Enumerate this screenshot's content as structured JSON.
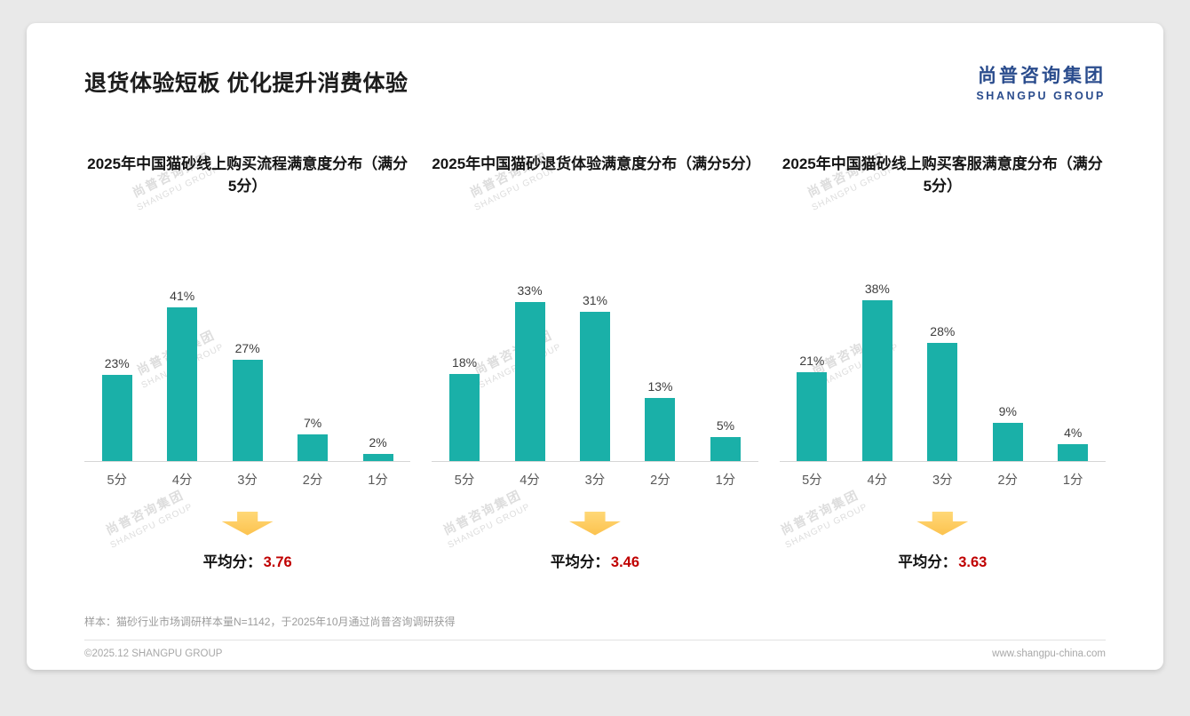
{
  "page": {
    "title": "退货体验短板 优化提升消费体验",
    "logo": {
      "name_cn": "尚普咨询集团",
      "name_en": "SHANGPU GROUP"
    },
    "watermark": {
      "line1": "尚普咨询集团",
      "line2": "SHANGPU GROUP"
    },
    "footer": {
      "note": "样本：猫砂行业市场调研样本量N=1142，于2025年10月通过尚普咨询调研获得",
      "copyright": "©2025.12 SHANGPU GROUP",
      "website": "www.shangpu-china.com"
    }
  },
  "colors": {
    "bar": "#1ab0a8",
    "accent_red": "#c00000",
    "logo_blue": "#2a4c8d",
    "arrow_yellow": "#fcc24e"
  },
  "chart_data": [
    {
      "type": "bar",
      "title": "2025年中国猫砂线上购买流程满意度分布（满分5分）",
      "categories": [
        "5分",
        "4分",
        "3分",
        "2分",
        "1分"
      ],
      "values": [
        23,
        41,
        27,
        7,
        2
      ],
      "value_labels": [
        "23%",
        "41%",
        "27%",
        "7%",
        "2%"
      ],
      "ylim": [
        0,
        45
      ],
      "grid": false,
      "legend": false,
      "average_label": "平均分：",
      "average": "3.76"
    },
    {
      "type": "bar",
      "title": "2025年中国猫砂退货体验满意度分布（满分5分）",
      "categories": [
        "5分",
        "4分",
        "3分",
        "2分",
        "1分"
      ],
      "values": [
        18,
        33,
        31,
        13,
        5
      ],
      "value_labels": [
        "18%",
        "33%",
        "31%",
        "13%",
        "5%"
      ],
      "ylim": [
        0,
        35
      ],
      "grid": false,
      "legend": false,
      "average_label": "平均分：",
      "average": "3.46"
    },
    {
      "type": "bar",
      "title": "2025年中国猫砂线上购买客服满意度分布（满分5分）",
      "categories": [
        "5分",
        "4分",
        "3分",
        "2分",
        "1分"
      ],
      "values": [
        21,
        38,
        28,
        9,
        4
      ],
      "value_labels": [
        "21%",
        "38%",
        "28%",
        "9%",
        "4%"
      ],
      "ylim": [
        0,
        40
      ],
      "grid": false,
      "legend": false,
      "average_label": "平均分：",
      "average": "3.63"
    }
  ]
}
